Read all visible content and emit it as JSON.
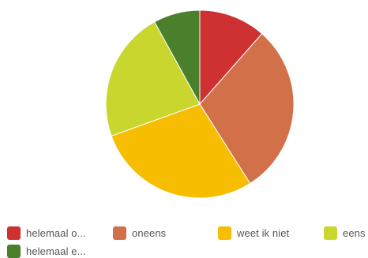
{
  "chart_data": {
    "type": "pie",
    "title": "",
    "start_angle_deg": 0,
    "direction": "clockwise",
    "legend_position": "bottom",
    "slices": [
      {
        "label": "helemaal o...",
        "value": 11.5,
        "color": "#cd3131"
      },
      {
        "label": "oneens",
        "value": 29.5,
        "color": "#d2704a"
      },
      {
        "label": "weet ik niet",
        "value": 28.5,
        "color": "#f7bd00"
      },
      {
        "label": "eens",
        "value": 22.5,
        "color": "#c8d62e"
      },
      {
        "label": "helemaal e...",
        "value": 8.0,
        "color": "#4a7f2c"
      }
    ]
  }
}
